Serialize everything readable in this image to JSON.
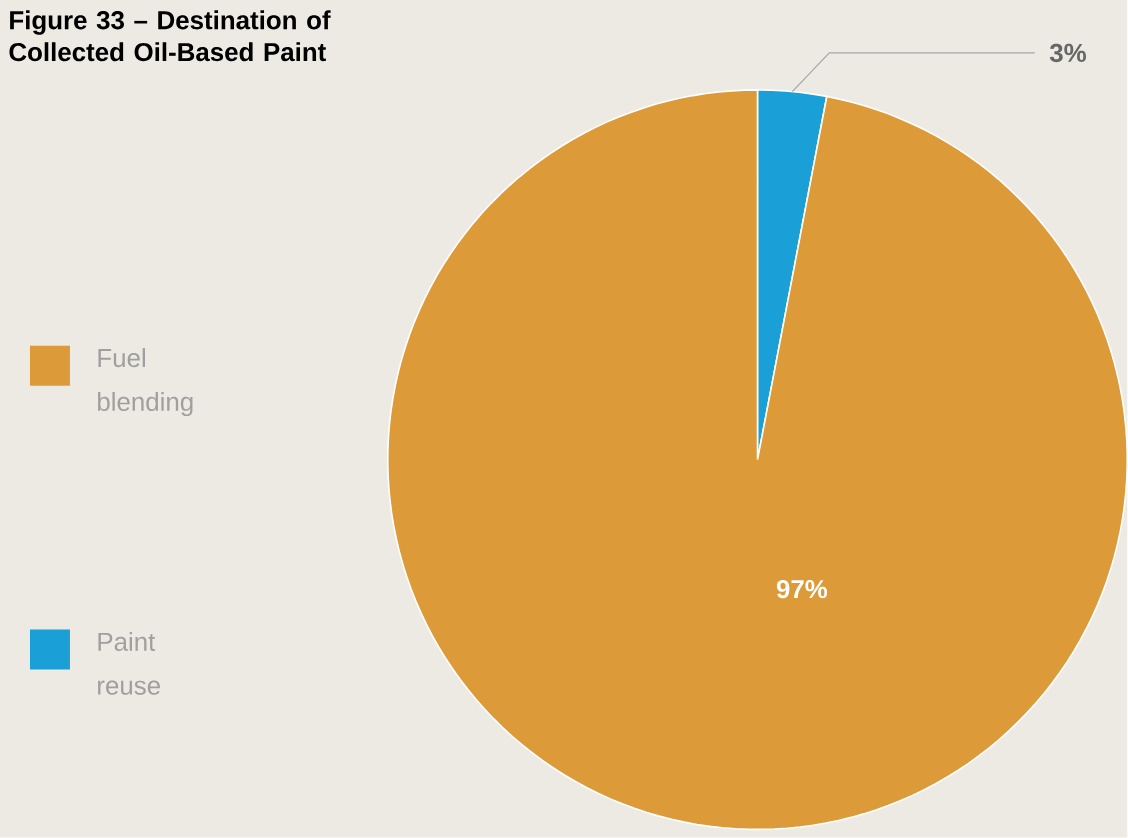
{
  "chart_data": {
    "type": "pie",
    "title": "Figure 33 – Destination of Collected Oil-Based Paint",
    "categories": [
      "Fuel blending",
      "Paint reuse"
    ],
    "values": [
      97,
      3
    ],
    "colors": [
      "#dc9a38",
      "#1a9fd6"
    ],
    "value_labels": [
      "97%",
      "3%"
    ],
    "legend": "left"
  }
}
